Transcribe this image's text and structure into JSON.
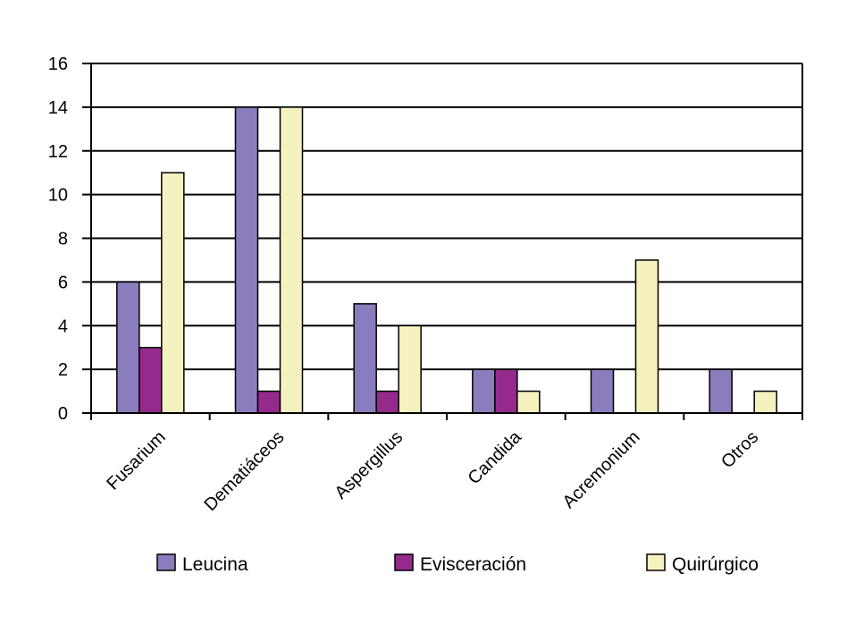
{
  "chart_data": {
    "type": "bar",
    "title": "",
    "xlabel": "",
    "ylabel": "",
    "categories": [
      "Fusarium",
      "Dematiáceos",
      "Aspergillus",
      "Candida",
      "Acremonium",
      "Otros"
    ],
    "series": [
      {
        "name": "Leucina",
        "color": "#8b7dbd",
        "values": [
          6,
          14,
          5,
          2,
          2,
          2
        ]
      },
      {
        "name": "Evisceración",
        "color": "#952a8c",
        "values": [
          3,
          1,
          1,
          2,
          0,
          0
        ]
      },
      {
        "name": "Quirúrgico",
        "color": "#f5f2bf",
        "values": [
          11,
          14,
          4,
          1,
          7,
          1
        ]
      }
    ],
    "ylim": [
      0,
      16
    ],
    "yticks": [
      0,
      2,
      4,
      6,
      8,
      10,
      12,
      14,
      16
    ],
    "grid": true,
    "legend": "bottom"
  }
}
